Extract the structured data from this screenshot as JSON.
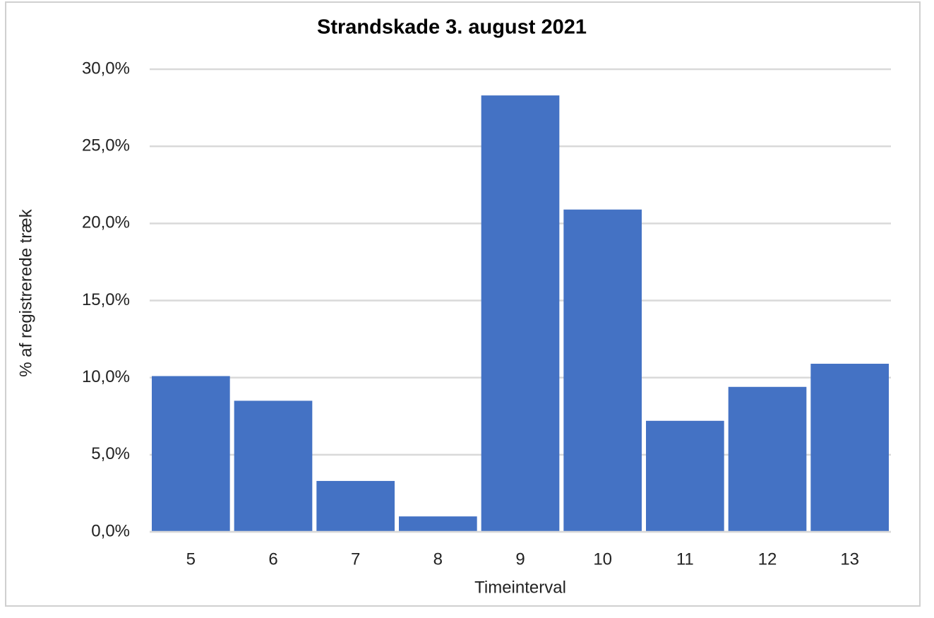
{
  "chart_data": {
    "type": "bar",
    "title": "Strandskade 3. august 2021",
    "x_label": "Timeinterval",
    "y_label": "% af  registrerede træk",
    "categories": [
      "5",
      "6",
      "7",
      "8",
      "9",
      "10",
      "11",
      "12",
      "13"
    ],
    "values": [
      10.1,
      8.5,
      3.3,
      1.0,
      28.3,
      20.9,
      7.2,
      9.4,
      10.9
    ],
    "color": "#4472c4",
    "ylim": [
      0,
      30
    ],
    "yticks": [
      {
        "value": 0,
        "label": "0,0%"
      },
      {
        "value": 5,
        "label": "5,0%"
      },
      {
        "value": 10,
        "label": "10,0%"
      },
      {
        "value": 15,
        "label": "15,0%"
      },
      {
        "value": 20,
        "label": "20,0%"
      },
      {
        "value": 25,
        "label": "25,0%"
      },
      {
        "value": 30,
        "label": "30,0%"
      }
    ],
    "grid": true
  }
}
